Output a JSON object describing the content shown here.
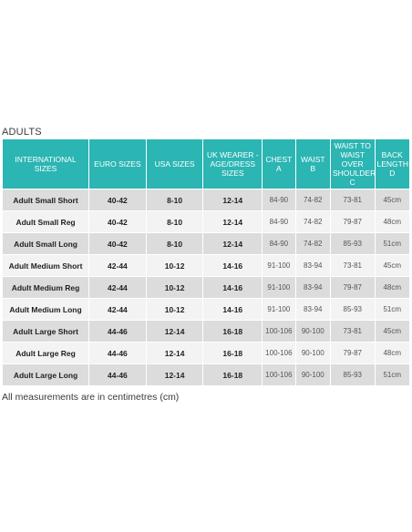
{
  "caption": "ADULTS",
  "headers": [
    "INTERNATIONAL SIZES",
    "EURO SIZES",
    "USA SIZES",
    "UK WEARER - AGE/DRESS SIZES",
    "CHEST A",
    "WAIST B",
    "WAIST TO WAIST OVER SHOULDER C",
    "BACK LENGTH D"
  ],
  "rows": [
    [
      "Adult Small Short",
      "40-42",
      "8-10",
      "12-14",
      "84-90",
      "74-82",
      "73-81",
      "45cm"
    ],
    [
      "Adult Small Reg",
      "40-42",
      "8-10",
      "12-14",
      "84-90",
      "74-82",
      "79-87",
      "48cm"
    ],
    [
      "Adult Small Long",
      "40-42",
      "8-10",
      "12-14",
      "84-90",
      "74-82",
      "85-93",
      "51cm"
    ],
    [
      "Adult Medium Short",
      "42-44",
      "10-12",
      "14-16",
      "91-100",
      "83-94",
      "73-81",
      "45cm"
    ],
    [
      "Adult Medium Reg",
      "42-44",
      "10-12",
      "14-16",
      "91-100",
      "83-94",
      "79-87",
      "48cm"
    ],
    [
      "Adult Medium Long",
      "42-44",
      "10-12",
      "14-16",
      "91-100",
      "83-94",
      "85-93",
      "51cm"
    ],
    [
      "Adult Large Short",
      "44-46",
      "12-14",
      "16-18",
      "100-106",
      "90-100",
      "73-81",
      "45cm"
    ],
    [
      "Adult Large Reg",
      "44-46",
      "12-14",
      "16-18",
      "100-106",
      "90-100",
      "79-87",
      "48cm"
    ],
    [
      "Adult Large Long",
      "44-46",
      "12-14",
      "16-18",
      "100-106",
      "90-100",
      "85-93",
      "51cm"
    ]
  ],
  "note": "All measurements are in centimetres (cm)",
  "colors": {
    "header_bg": "#2bb5b3",
    "row_dark": "#dcdcdc",
    "row_light": "#f3f3f3"
  }
}
